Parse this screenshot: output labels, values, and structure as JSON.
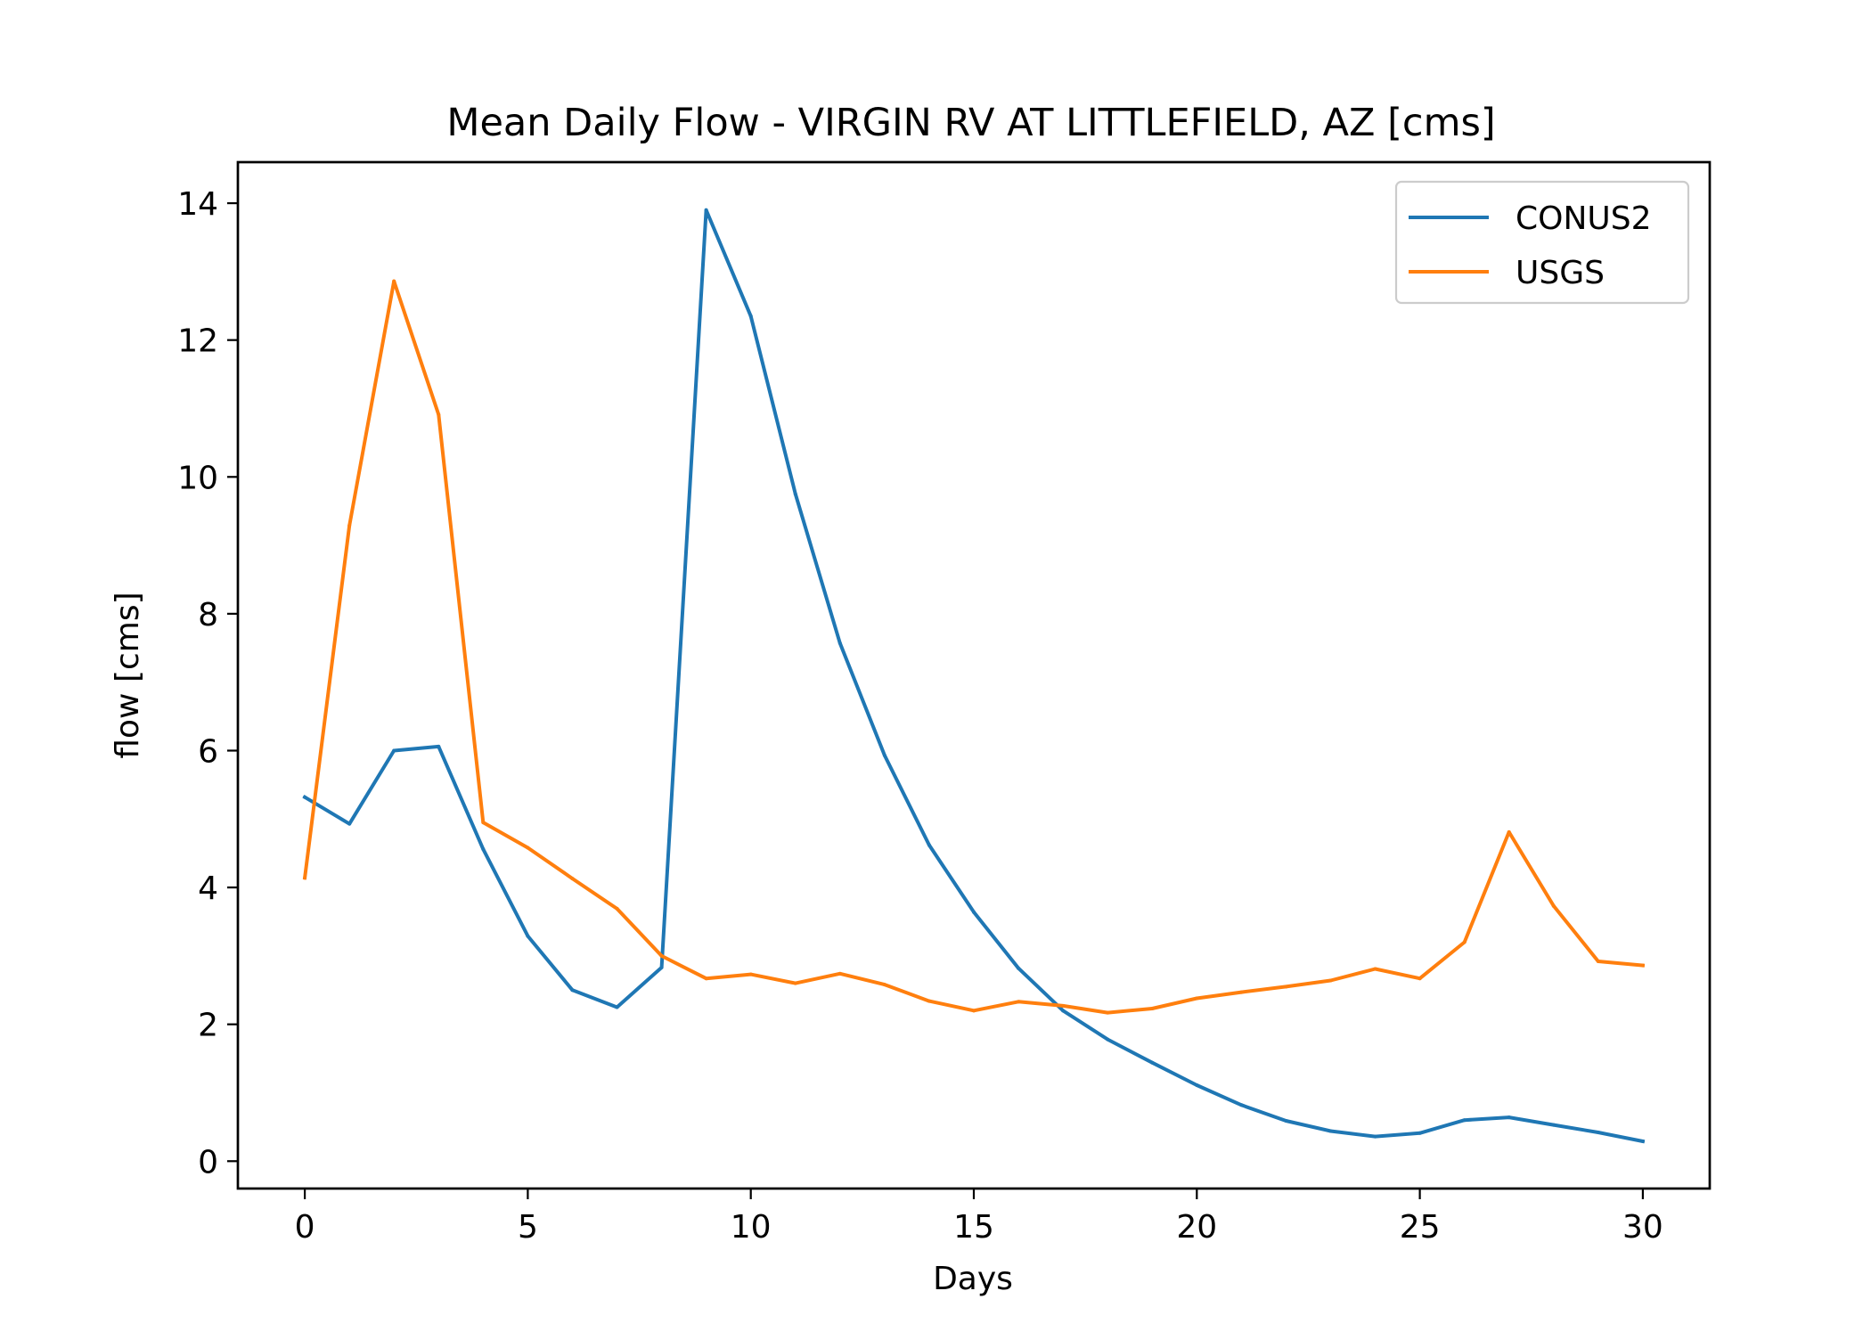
{
  "chart_data": {
    "type": "line",
    "title": "Mean Daily Flow - VIRGIN RV AT LITTLEFIELD, AZ [cms]",
    "xlabel": "Days",
    "ylabel": "flow [cms]",
    "xlim": [
      -1.5,
      31.5
    ],
    "ylim": [
      -0.4,
      14.6
    ],
    "xticks": [
      0,
      5,
      10,
      15,
      20,
      25,
      30
    ],
    "yticks": [
      0,
      2,
      4,
      6,
      8,
      10,
      12,
      14
    ],
    "grid": false,
    "legend_position": "top-right",
    "x": [
      0,
      1,
      2,
      3,
      4,
      5,
      6,
      7,
      8,
      9,
      10,
      11,
      12,
      13,
      14,
      15,
      16,
      17,
      18,
      19,
      20,
      21,
      22,
      23,
      24,
      25,
      26,
      27,
      28,
      29,
      30
    ],
    "series": [
      {
        "name": "CONUS2",
        "color": "#1f77b4",
        "values": [
          5.32,
          4.93,
          6.0,
          6.06,
          4.56,
          3.29,
          2.5,
          2.25,
          2.83,
          13.9,
          12.35,
          9.75,
          7.57,
          5.93,
          4.62,
          3.64,
          2.82,
          2.2,
          1.78,
          1.44,
          1.11,
          0.82,
          0.59,
          0.44,
          0.36,
          0.41,
          0.6,
          0.64,
          0.53,
          0.42,
          0.29
        ]
      },
      {
        "name": "USGS",
        "color": "#ff7f0e",
        "values": [
          4.14,
          9.29,
          12.86,
          10.91,
          4.95,
          4.58,
          4.13,
          3.69,
          3.0,
          2.67,
          2.73,
          2.6,
          2.74,
          2.58,
          2.34,
          2.2,
          2.33,
          2.27,
          2.17,
          2.23,
          2.38,
          2.47,
          2.55,
          2.64,
          2.81,
          2.67,
          3.2,
          4.81,
          3.73,
          2.92,
          2.86
        ]
      }
    ]
  }
}
